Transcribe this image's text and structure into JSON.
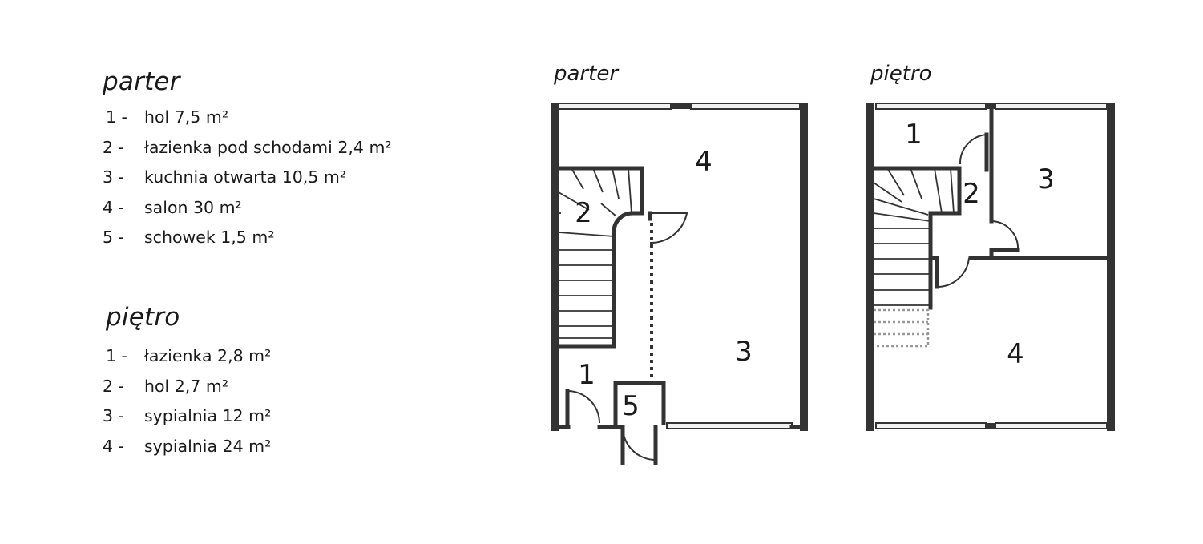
{
  "legend": {
    "parter": {
      "title": "parter",
      "items": [
        {
          "num": "1 -",
          "label": "hol 7,5 m²"
        },
        {
          "num": "2 -",
          "label": "łazienka pod schodami 2,4 m²"
        },
        {
          "num": "3 -",
          "label": "kuchnia otwarta 10,5 m²"
        },
        {
          "num": "4 -",
          "label": "salon 30 m²"
        },
        {
          "num": "5 -",
          "label": "schowek 1,5 m²"
        }
      ]
    },
    "pietro": {
      "title": "piętro",
      "items": [
        {
          "num": "1 -",
          "label": "łazienka 2,8 m²"
        },
        {
          "num": "2 -",
          "label": "hol 2,7 m²"
        },
        {
          "num": "3 -",
          "label": "sypialnia 12 m²"
        },
        {
          "num": "4 -",
          "label": "sypialnia 24 m²"
        }
      ]
    }
  },
  "plans": {
    "parter": {
      "title": "parter",
      "rooms": {
        "r1": "1",
        "r2": "2",
        "r3": "3",
        "r4": "4",
        "r5": "5"
      }
    },
    "pietro": {
      "title": "piętro",
      "rooms": {
        "r1": "1",
        "r2": "2",
        "r3": "3",
        "r4": "4"
      }
    }
  },
  "colors": {
    "wall": "#333333",
    "window": "#f1f1f1",
    "background": "#ffffff"
  }
}
